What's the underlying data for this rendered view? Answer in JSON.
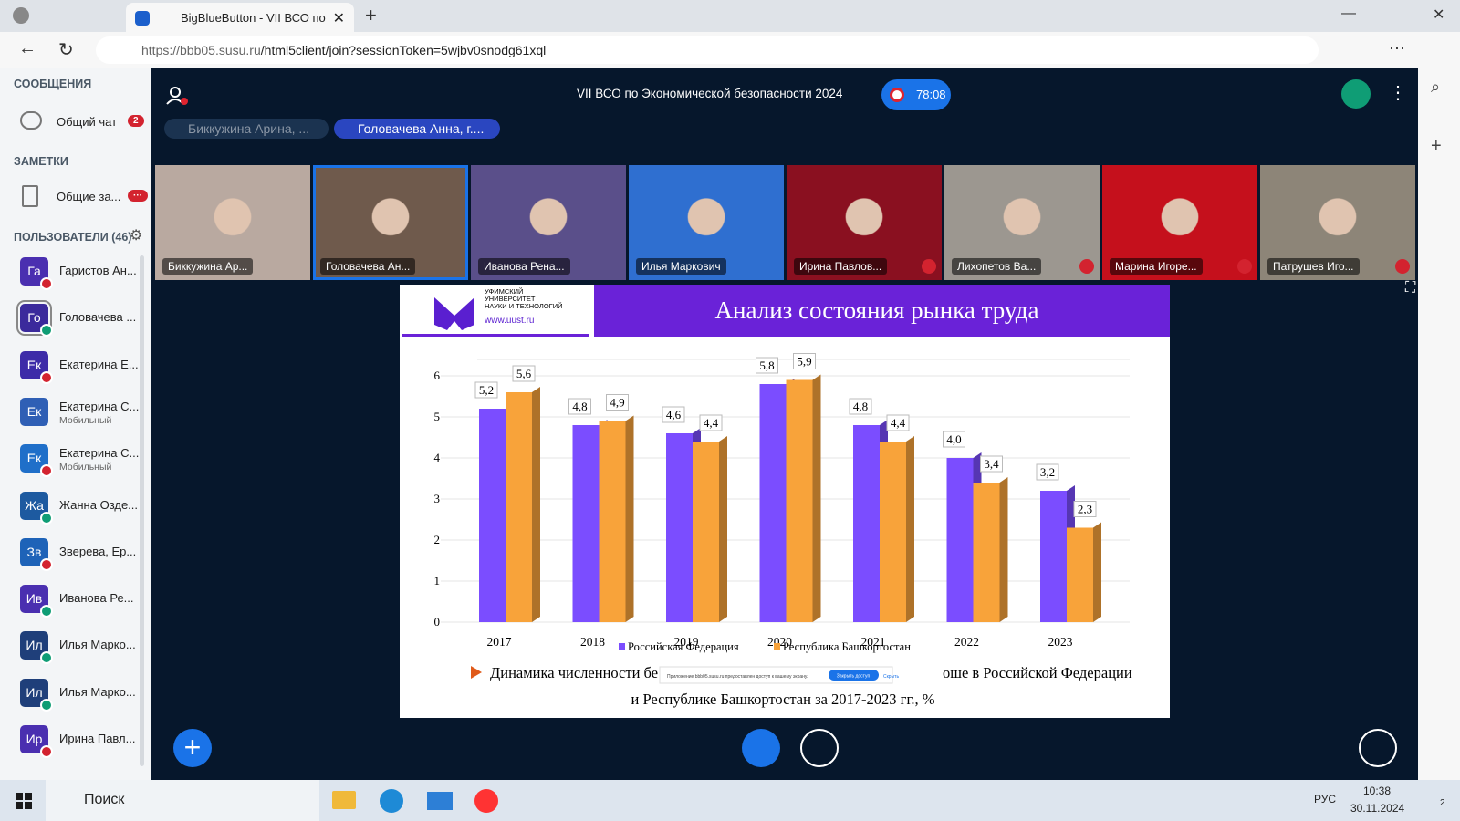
{
  "browser": {
    "tab_title": "BigBlueButton - VII ВСО по",
    "url_host": "https://bbb05.susu.ru",
    "url_path": "/html5client/join?sessionToken=5wjbv0snodg61xql"
  },
  "sidebar": {
    "messages_heading": "СООБЩЕНИЯ",
    "chat": "Общий чат",
    "chat_badge": "2",
    "notes_heading": "ЗАМЕТКИ",
    "notes": "Общие за...",
    "notes_badge": "···",
    "users_heading": "ПОЛЬЗОВАТЕЛИ (46)",
    "users": [
      {
        "initials": "Га",
        "name": "Гаристов Ан...",
        "color": "#4a2fb0",
        "status": "muted"
      },
      {
        "initials": "Го",
        "name": "Головачева ...",
        "color": "#3b2a9c",
        "status": "talking"
      },
      {
        "initials": "Ек",
        "name": "Екатерина Е...",
        "color": "#3d2ba8",
        "status": "muted"
      },
      {
        "initials": "Ек",
        "name": "Екатерина С...",
        "sub": "Мобильный",
        "color": "#2f5fb5",
        "status": "none"
      },
      {
        "initials": "Ек",
        "name": "Екатерина С...",
        "sub": "Мобильный",
        "color": "#1f6fc9",
        "status": "muted"
      },
      {
        "initials": "Жа",
        "name": "Жанна Озде...",
        "color": "#1d5aa0",
        "status": "listening"
      },
      {
        "initials": "Зв",
        "name": "Зверева, Ер...",
        "color": "#1e63b8",
        "status": "muted"
      },
      {
        "initials": "Ив",
        "name": "Иванова Ре...",
        "color": "#4a2fb0",
        "status": "talking"
      },
      {
        "initials": "Ил",
        "name": "Илья Марко...",
        "color": "#1f3f7a",
        "status": "talking"
      },
      {
        "initials": "Ил",
        "name": "Илья Марко...",
        "color": "#1f3f7a",
        "status": "listening"
      },
      {
        "initials": "Ир",
        "name": "Ирина Павл...",
        "color": "#4a2fb0",
        "status": "muted"
      }
    ]
  },
  "meeting": {
    "title": "VII ВСО по Экономической безопасности 2024",
    "timer": "78:08",
    "talkers": [
      "Биккужина Арина, ...",
      "Головачева Анна, г...."
    ],
    "tiles": [
      {
        "name": "Биккужина Ар...",
        "color": "#b9a9a0",
        "muted": false
      },
      {
        "name": "Головачева Ан...",
        "color": "#6f5a4c",
        "muted": false
      },
      {
        "name": "Иванова Рена...",
        "color": "#5a4f8a",
        "muted": false
      },
      {
        "name": "Илья Маркович",
        "color": "#2f6fd0",
        "muted": false
      },
      {
        "name": "Ирина Павлов...",
        "color": "#8a1020",
        "muted": true
      },
      {
        "name": "Лихопетов Ва...",
        "color": "#9c9790",
        "muted": true
      },
      {
        "name": "Марина Игоре...",
        "color": "#c5101c",
        "muted": true
      },
      {
        "name": "Патрушев Иго...",
        "color": "#8d8578",
        "muted": true
      }
    ]
  },
  "slide": {
    "university": [
      "УФИМСКИЙ",
      "УНИВЕРСИТЕТ",
      "НАУКИ И ТЕХНОЛОГИЙ"
    ],
    "site": "www.uust.ru",
    "title": "Анализ состояния рынка труда",
    "caption_start": "Динамика численности бе",
    "caption_end": "оше в Российской Федерации",
    "caption_line2": "и Республике Башкортостан за 2017-2023 гг., %",
    "popup": {
      "text": "Приложение bbb05.susu.ru предоставлен доступ к вашему экрану.",
      "button": "Закрыть доступ",
      "link": "Скрыть"
    }
  },
  "chart_data": {
    "type": "bar",
    "categories": [
      "2017",
      "2018",
      "2019",
      "2020",
      "2021",
      "2022",
      "2023"
    ],
    "series": [
      {
        "name": "Российская Федерация",
        "color": "#7b4dff",
        "values": [
          5.2,
          4.8,
          4.6,
          5.8,
          4.8,
          4.0,
          3.2
        ],
        "value_labels": [
          "5,2",
          "4,8",
          "4,6",
          "5,8",
          "4,8",
          "4,0",
          "3,2"
        ]
      },
      {
        "name": "Республика Башкортостан",
        "color": "#f8a33a",
        "values": [
          5.6,
          4.9,
          4.4,
          5.9,
          4.4,
          3.4,
          2.3
        ],
        "value_labels": [
          "5,6",
          "4,9",
          "4,4",
          "5,9",
          "4,4",
          "3,4",
          "2,3"
        ]
      }
    ],
    "ylim": [
      0,
      6.4
    ],
    "yticks": [
      0,
      1,
      2,
      3,
      4,
      5,
      6
    ],
    "grid": true,
    "legend": "bottom"
  },
  "taskbar": {
    "search": "Поиск",
    "language": "РУС",
    "time": "10:38",
    "date": "30.11.2024",
    "notifications": "2"
  }
}
